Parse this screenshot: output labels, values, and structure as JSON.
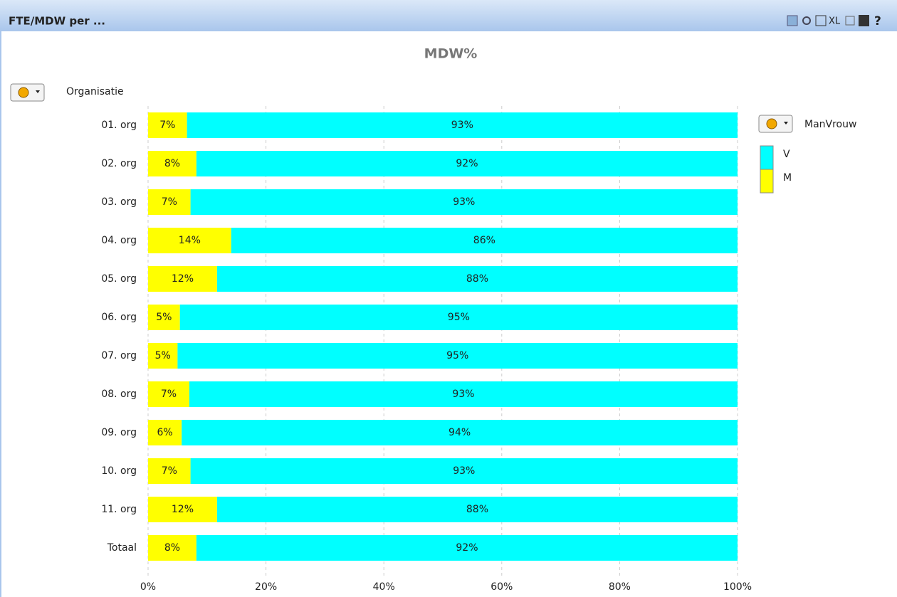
{
  "header": {
    "title": "FTE/MDW per ...",
    "toolbar": [
      "XL",
      "?"
    ]
  },
  "chart_data": {
    "type": "stacked-barh",
    "title": "MDW%",
    "y_label": "Organisatie",
    "legend_title": "ManVrouw",
    "categories": [
      "01. org",
      "02. org",
      "03. org",
      "04. org",
      "05. org",
      "06. org",
      "07. org",
      "08. org",
      "09. org",
      "10. org",
      "11. org",
      "Totaal"
    ],
    "series": [
      {
        "name": "M",
        "color": "#ffff00",
        "values": [
          6.6,
          8.2,
          7.2,
          14.1,
          11.7,
          5.4,
          5.0,
          7.0,
          5.7,
          7.2,
          11.7,
          8.2
        ],
        "value_labels": [
          "7%",
          "8%",
          "7%",
          "14%",
          "12%",
          "5%",
          "5%",
          "7%",
          "6%",
          "7%",
          "12%",
          "8%"
        ]
      },
      {
        "name": "V",
        "color": "#00ffff",
        "values": [
          93.4,
          91.8,
          92.8,
          85.9,
          88.3,
          94.6,
          95.0,
          93.0,
          94.3,
          92.8,
          88.3,
          91.8
        ],
        "value_labels": [
          "93%",
          "92%",
          "93%",
          "86%",
          "88%",
          "95%",
          "95%",
          "93%",
          "94%",
          "93%",
          "88%",
          "92%"
        ]
      }
    ],
    "xlim": [
      0,
      100
    ],
    "xticks": [
      {
        "value": 0,
        "label": "0%"
      },
      {
        "value": 20,
        "label": "20%"
      },
      {
        "value": 40,
        "label": "40%"
      },
      {
        "value": 60,
        "label": "60%"
      },
      {
        "value": 80,
        "label": "80%"
      },
      {
        "value": 100,
        "label": "100%"
      }
    ],
    "grid": true,
    "legend": "right"
  }
}
